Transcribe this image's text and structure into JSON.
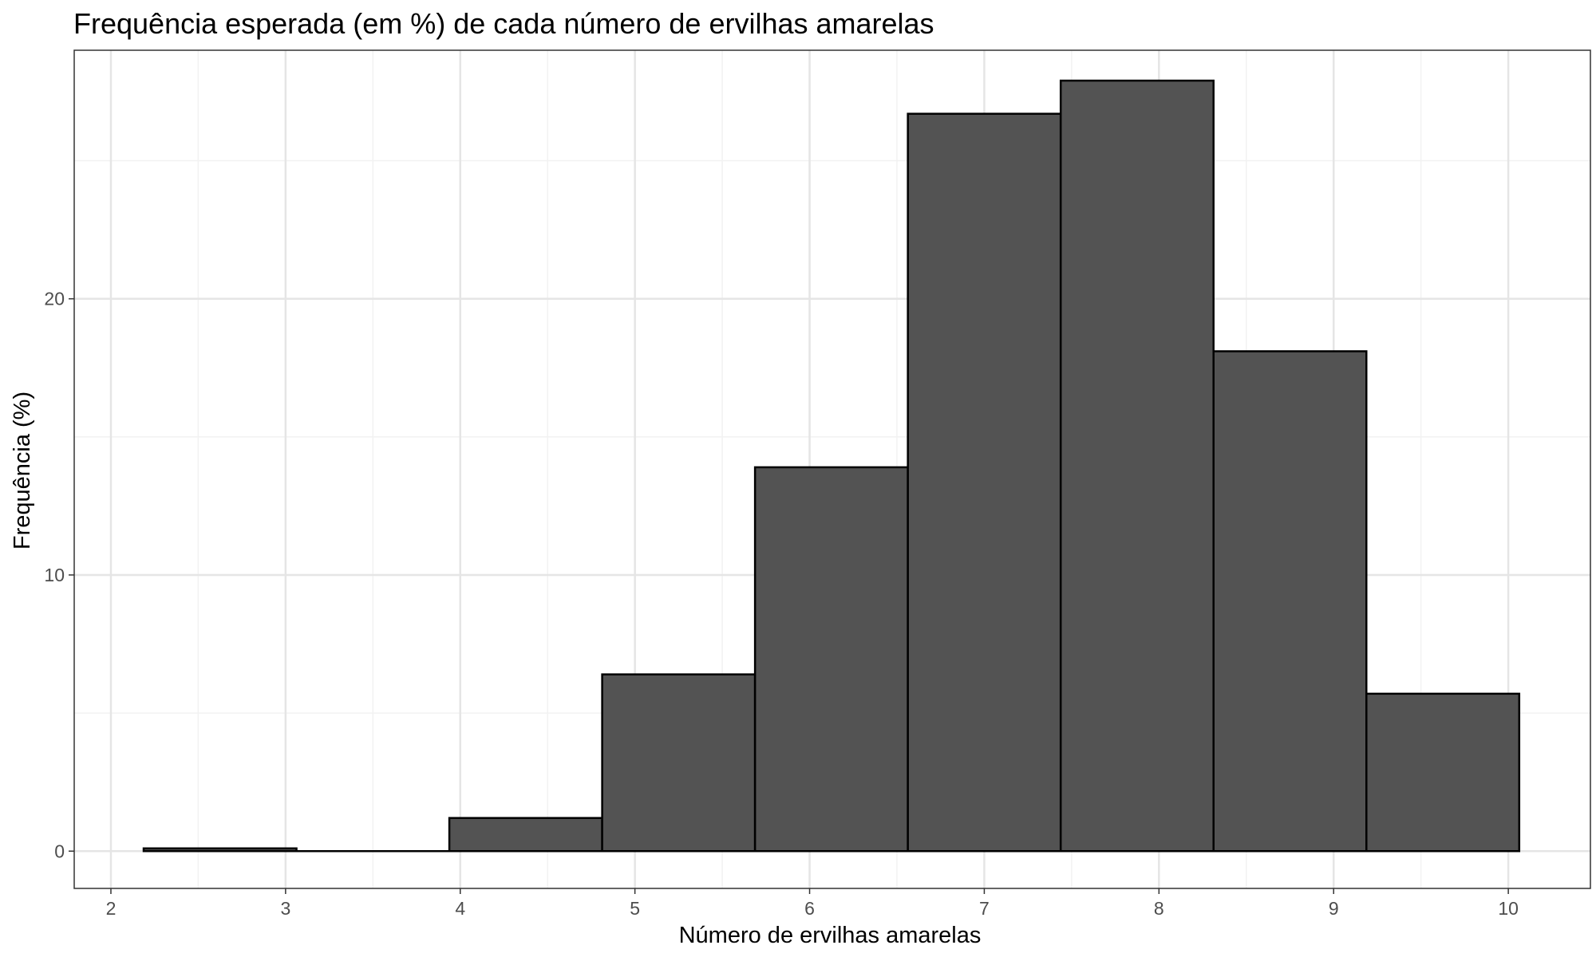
{
  "chart_data": {
    "type": "bar",
    "title": "Frequência esperada (em %) de cada número de ervilhas amarelas",
    "xlabel": "Número de ervilhas amarelas",
    "ylabel": "Frequência (%)",
    "xlim": [
      1.79,
      10.47
    ],
    "ylim": [
      -1.35,
      29.0
    ],
    "x_ticks": [
      2,
      3,
      4,
      5,
      6,
      7,
      8,
      9,
      10
    ],
    "y_ticks": [
      0,
      10,
      20
    ],
    "bin_width": 0.875,
    "bins": [
      {
        "x_center": 2.625,
        "value": 0.1
      },
      {
        "x_center": 3.5,
        "value": 0.0
      },
      {
        "x_center": 4.375,
        "value": 1.2
      },
      {
        "x_center": 5.25,
        "value": 6.4
      },
      {
        "x_center": 6.125,
        "value": 13.9
      },
      {
        "x_center": 7.0,
        "value": 26.7
      },
      {
        "x_center": 7.875,
        "value": 27.9
      },
      {
        "x_center": 8.75,
        "value": 18.1
      },
      {
        "x_center": 9.625,
        "value": 5.7
      }
    ],
    "grid": true,
    "colors": {
      "bar_fill": "#535353",
      "bar_stroke": "#000000",
      "grid_major": "#e5e5e5",
      "grid_minor": "#f2f2f2",
      "panel_border": "#333333"
    }
  }
}
